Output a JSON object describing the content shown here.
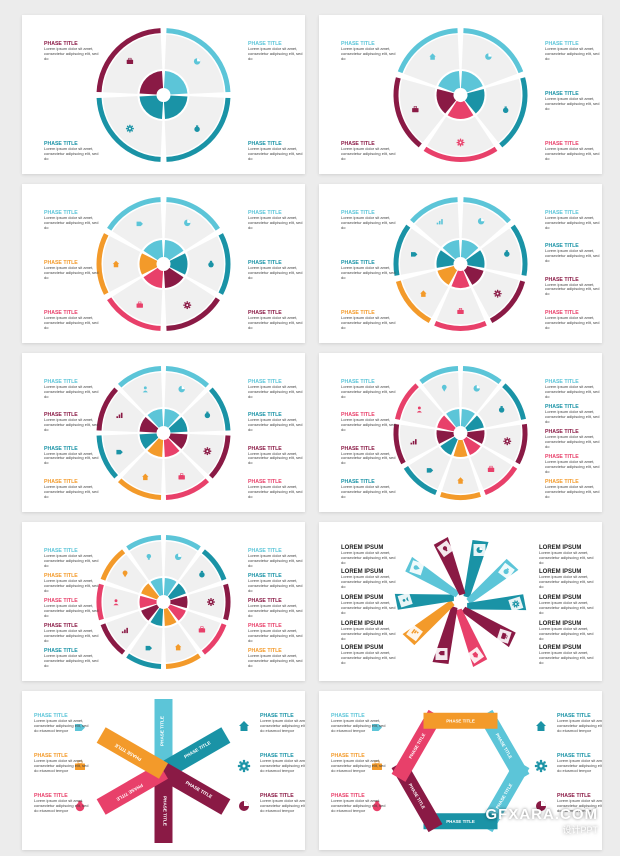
{
  "colors": {
    "maroon": "#8a1a45",
    "teal": "#1a93a6",
    "lightblue": "#5cc5d8",
    "pink": "#e8406a",
    "orange": "#f39a2a",
    "gray": "#f0f0f0"
  },
  "phase_title": "PHASE TITLE",
  "lorem_title": "LOREM IPSUM",
  "body_text": "Lorem ipsum dolor sit amet, consectetur adipiscing elit, sed do",
  "body_text_long": "Lorem ipsum dolor sit amet, consectetur adipiscing elit, sed do eiusmod tempor",
  "watermark": {
    "brand": "GFXARA.COM",
    "sub": "设计PPT"
  },
  "slides": [
    {
      "name": "slide-4-segment-circle",
      "segments": 4
    },
    {
      "name": "slide-5-segment-circle",
      "segments": 5
    },
    {
      "name": "slide-6-segment-circle",
      "segments": 6
    },
    {
      "name": "slide-7-segment-circle",
      "segments": 7
    },
    {
      "name": "slide-8-segment-circle",
      "segments": 8
    },
    {
      "name": "slide-9-segment-circle",
      "segments": 9
    },
    {
      "name": "slide-10-segment-circle",
      "segments": 10
    },
    {
      "name": "slide-pinwheel-10-arms",
      "segments": 10
    },
    {
      "name": "slide-asterisk-6-bars",
      "segments": 6
    },
    {
      "name": "slide-hexagon-ribbon",
      "segments": 6
    }
  ]
}
